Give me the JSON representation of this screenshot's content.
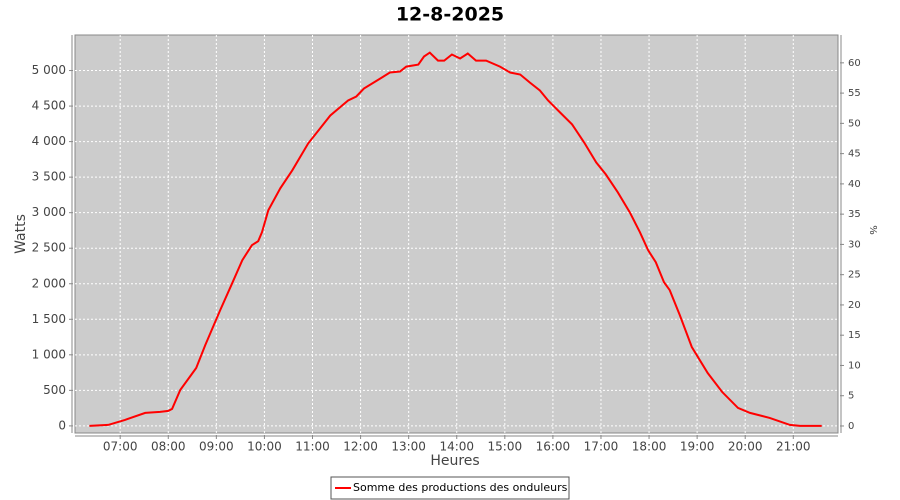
{
  "chart_data": {
    "type": "line",
    "title": "12-8-2025",
    "xlabel": "Heures",
    "ylabel": "Watts",
    "y2label": "%",
    "x": [
      6.36,
      6.75,
      7.1,
      7.52,
      7.83,
      8.0,
      8.08,
      8.25,
      8.46,
      8.58,
      8.77,
      9.08,
      9.33,
      9.54,
      9.74,
      9.87,
      9.95,
      10.08,
      10.33,
      10.58,
      10.91,
      11.37,
      11.74,
      11.91,
      12.07,
      12.41,
      12.61,
      12.82,
      12.95,
      13.2,
      13.32,
      13.44,
      13.61,
      13.74,
      13.9,
      14.07,
      14.23,
      14.4,
      14.61,
      14.9,
      15.11,
      15.32,
      15.52,
      15.73,
      15.9,
      16.15,
      16.4,
      16.65,
      16.9,
      17.1,
      17.35,
      17.6,
      17.81,
      17.98,
      18.14,
      18.31,
      18.43,
      18.64,
      18.89,
      19.22,
      19.52,
      19.85,
      20.1,
      20.51,
      20.93,
      21.14,
      21.59
    ],
    "series": [
      {
        "name": "Somme des productions des onduleurs",
        "color": "#ff0000",
        "values": [
          0,
          14,
          84,
          183,
          197,
          211,
          239,
          506,
          702,
          815,
          1138,
          1629,
          2008,
          2331,
          2542,
          2598,
          2725,
          3034,
          3343,
          3596,
          3975,
          4368,
          4579,
          4635,
          4747,
          4888,
          4972,
          4986,
          5056,
          5084,
          5197,
          5253,
          5140,
          5140,
          5225,
          5169,
          5239,
          5140,
          5140,
          5056,
          4972,
          4944,
          4831,
          4719,
          4579,
          4410,
          4242,
          3989,
          3708,
          3539,
          3287,
          3006,
          2725,
          2472,
          2303,
          2022,
          1910,
          1559,
          1110,
          744,
          478,
          253,
          183,
          112,
          14,
          0,
          0
        ]
      }
    ],
    "xlim": [
      6.06,
      21.93
    ],
    "xticks": [
      {
        "value": 7,
        "label": "07:00"
      },
      {
        "value": 8,
        "label": "08:00"
      },
      {
        "value": 9,
        "label": "09:00"
      },
      {
        "value": 10,
        "label": "10:00"
      },
      {
        "value": 11,
        "label": "11:00"
      },
      {
        "value": 12,
        "label": "12:00"
      },
      {
        "value": 13,
        "label": "13:00"
      },
      {
        "value": 14,
        "label": "14:00"
      },
      {
        "value": 15,
        "label": "15:00"
      },
      {
        "value": 16,
        "label": "16:00"
      },
      {
        "value": 17,
        "label": "17:00"
      },
      {
        "value": 18,
        "label": "18:00"
      },
      {
        "value": 19,
        "label": "19:00"
      },
      {
        "value": 20,
        "label": "20:00"
      },
      {
        "value": 21,
        "label": "21:00"
      }
    ],
    "ylim": [
      -100,
      5500
    ],
    "yticks": [
      0,
      500,
      {
        "value": 1000,
        "label": "1 000"
      },
      {
        "value": 1500,
        "label": "1 500"
      },
      {
        "value": 2000,
        "label": "2 000"
      },
      {
        "value": 2500,
        "label": "2 500"
      },
      {
        "value": 3000,
        "label": "3 000"
      },
      {
        "value": 3500,
        "label": "3 500"
      },
      {
        "value": 4000,
        "label": "4 000"
      },
      {
        "value": 4500,
        "label": "4 500"
      },
      {
        "value": 5000,
        "label": "5 000"
      }
    ],
    "y2lim": [
      -1.16,
      64.6
    ],
    "y2ticks": [
      0,
      5,
      10,
      15,
      20,
      25,
      30,
      35,
      40,
      45,
      50,
      55,
      60
    ],
    "grid": true,
    "legend": "bottom",
    "plot_background": "#cccccc"
  }
}
